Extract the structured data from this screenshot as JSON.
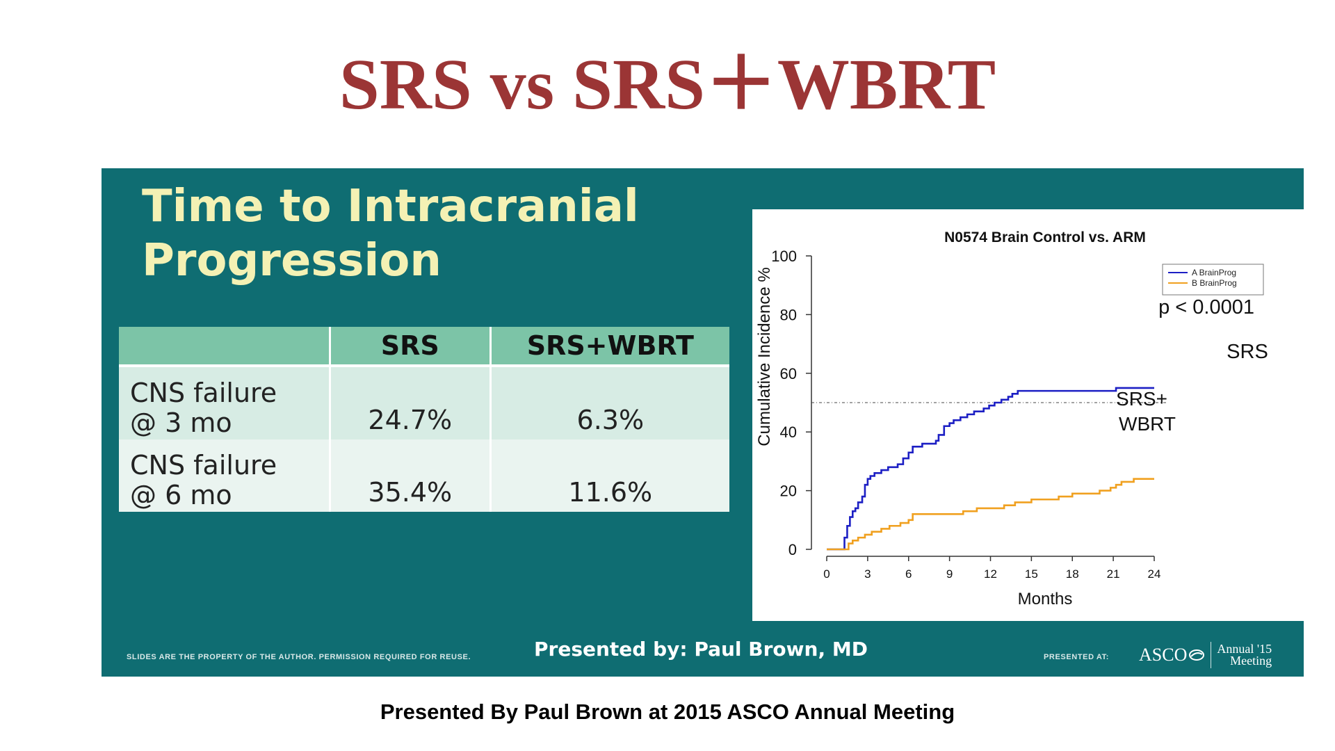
{
  "main_title": "SRS vs SRS＋WBRT",
  "slide": {
    "title_line1": "Time to Intracranial",
    "title_line2": "Progression",
    "table": {
      "headers": [
        "",
        "SRS",
        "SRS+WBRT"
      ],
      "rows": [
        {
          "label_line1": "CNS failure",
          "label_line2": "@ 3 mo",
          "srs": "24.7%",
          "srs_wbrt": "6.3%"
        },
        {
          "label_line1": "CNS failure",
          "label_line2": "@ 6 mo",
          "srs": "35.4%",
          "srs_wbrt": "11.6%"
        }
      ]
    },
    "footer_left": "SLIDES ARE THE PROPERTY OF THE AUTHOR. PERMISSION REQUIRED FOR REUSE.",
    "footer_center": "Presented by: Paul Brown, MD",
    "footer_presented_at": "PRESENTED AT:",
    "logo": {
      "asco": "ASCO",
      "annual": "Annual '15",
      "meeting": "Meeting"
    }
  },
  "caption": "Presented By Paul Brown at 2015 ASCO Annual Meeting",
  "chart_data": {
    "type": "line",
    "step": true,
    "title": "N0574 Brain Control vs. ARM",
    "xlabel": "Months",
    "ylabel": "Cumulative Incidence %",
    "xlim": [
      0,
      24
    ],
    "ylim": [
      0,
      100
    ],
    "xticks": [
      0,
      3,
      6,
      9,
      12,
      15,
      18,
      21,
      24
    ],
    "yticks": [
      0,
      20,
      40,
      60,
      80,
      100
    ],
    "reference_line_y": 50,
    "legend_position": "top-right",
    "annotation": "p < 0.0001",
    "series": [
      {
        "name": "A BrainProg",
        "label": "SRS",
        "color": "#1c1fc4",
        "x": [
          0,
          1.1,
          1.3,
          1.5,
          1.7,
          1.9,
          2.1,
          2.3,
          2.6,
          2.8,
          3.0,
          3.2,
          3.5,
          4.0,
          4.5,
          5.2,
          5.6,
          6.0,
          6.3,
          7.0,
          7.4,
          8.0,
          8.2,
          8.6,
          9.0,
          9.3,
          9.8,
          10.3,
          10.8,
          11.5,
          11.9,
          12.3,
          12.8,
          13.3,
          13.6,
          14.0,
          16.0,
          18.0,
          20.0,
          21.0,
          21.2,
          24.0
        ],
        "y": [
          0,
          0,
          4,
          8,
          11,
          13,
          14,
          16,
          18,
          22,
          24,
          25,
          26,
          27,
          28,
          29,
          31,
          33,
          35,
          36,
          36,
          37,
          39,
          42,
          43,
          44,
          45,
          46,
          47,
          48,
          49,
          50,
          51,
          52,
          53,
          54,
          54,
          54,
          54,
          54,
          55,
          55
        ]
      },
      {
        "name": "B BrainProg",
        "label": "SRS+ WBRT",
        "color": "#f0a01f",
        "x": [
          0,
          1.4,
          1.6,
          1.9,
          2.3,
          2.8,
          3.3,
          4.0,
          4.6,
          5.4,
          6.0,
          6.3,
          8.0,
          10.0,
          11.0,
          13.0,
          13.8,
          15.0,
          17.0,
          18.0,
          20.0,
          20.8,
          21.2,
          21.6,
          22.5,
          24.0
        ],
        "y": [
          0,
          0,
          2,
          3,
          4,
          5,
          6,
          7,
          8,
          9,
          10,
          12,
          12,
          13,
          14,
          15,
          16,
          17,
          18,
          19,
          20,
          21,
          22,
          23,
          24,
          24
        ]
      }
    ]
  }
}
